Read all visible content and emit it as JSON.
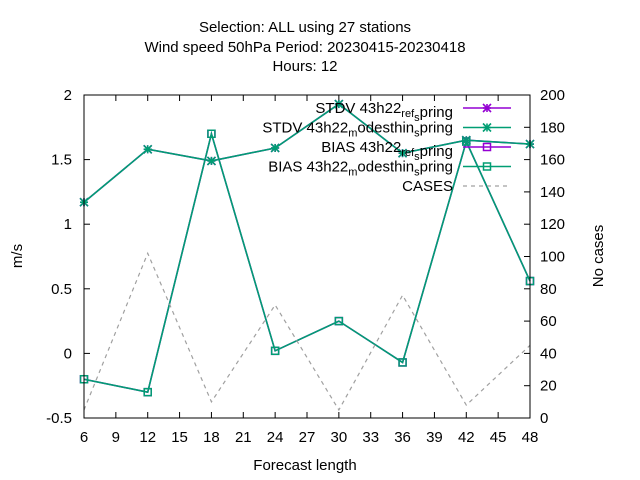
{
  "chart_data": {
    "type": "line",
    "title_lines": [
      "Selection: ALL using    27 stations",
      "Wind speed 50hPa   Period: 20230415-20230418",
      "Hours:  12"
    ],
    "xlabel": "Forecast length",
    "ylabel": "m/s",
    "y2label": "No cases",
    "x": [
      6,
      12,
      18,
      24,
      30,
      36,
      42,
      48
    ],
    "x_ticks": [
      6,
      9,
      12,
      15,
      18,
      21,
      24,
      27,
      30,
      33,
      36,
      39,
      42,
      45,
      48
    ],
    "xlim": [
      6,
      48
    ],
    "ylim": [
      -0.5,
      2
    ],
    "y_ticks": [
      -0.5,
      0,
      0.5,
      1,
      1.5,
      2
    ],
    "y2lim": [
      0,
      200
    ],
    "y2_ticks": [
      0,
      20,
      40,
      60,
      80,
      100,
      120,
      140,
      160,
      180,
      200
    ],
    "legend_position": "top-right",
    "series": [
      {
        "name": "STDV 43h22_ref_spring",
        "legend_parts": [
          [
            "STDV 43h22",
            ""
          ],
          [
            "ref",
            "sub"
          ],
          [
            "",
            ""
          ],
          [
            "s",
            "sub"
          ],
          [
            "pring",
            ""
          ]
        ],
        "color": "#9400d3",
        "marker": "x",
        "axis": "y1",
        "values": [
          1.17,
          1.58,
          1.49,
          1.59,
          1.93,
          1.55,
          1.65,
          1.62
        ]
      },
      {
        "name": "STDV 43h22_modesthin_spring",
        "legend_parts": [
          [
            "STDV 43h22",
            ""
          ],
          [
            "m",
            "sub"
          ],
          [
            "odesthin",
            ""
          ],
          [
            "s",
            "sub"
          ],
          [
            "pring",
            ""
          ]
        ],
        "color": "#009e73",
        "marker": "x",
        "axis": "y1",
        "values": [
          1.17,
          1.58,
          1.49,
          1.59,
          1.93,
          1.55,
          1.65,
          1.62
        ]
      },
      {
        "name": "BIAS 43h22_ref_spring",
        "legend_parts": [
          [
            "BIAS 43h22",
            ""
          ],
          [
            "ref",
            "sub"
          ],
          [
            "",
            ""
          ],
          [
            "s",
            "sub"
          ],
          [
            "pring",
            ""
          ]
        ],
        "color": "#9400d3",
        "marker": "square",
        "axis": "y1",
        "values": [
          -0.2,
          -0.3,
          1.7,
          0.02,
          0.25,
          -0.07,
          1.64,
          0.56
        ]
      },
      {
        "name": "BIAS 43h22_modesthin_spring",
        "legend_parts": [
          [
            "BIAS 43h22",
            ""
          ],
          [
            "m",
            "sub"
          ],
          [
            "odesthin",
            ""
          ],
          [
            "s",
            "sub"
          ],
          [
            "pring",
            ""
          ]
        ],
        "color": "#009e73",
        "marker": "square",
        "axis": "y1",
        "values": [
          -0.2,
          -0.3,
          1.7,
          0.02,
          0.25,
          -0.07,
          1.64,
          0.56
        ]
      },
      {
        "name": "CASES",
        "legend_parts": [
          [
            "CASES",
            ""
          ]
        ],
        "color": "#a0a0a0",
        "marker": "none",
        "dash": true,
        "axis": "y2",
        "values": [
          5,
          102,
          10,
          70,
          5,
          76,
          8,
          45
        ]
      }
    ]
  }
}
